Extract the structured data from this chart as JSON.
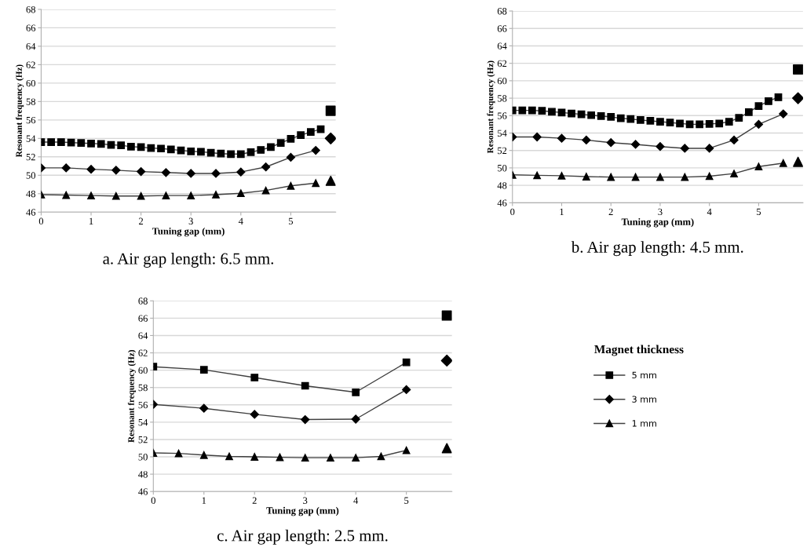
{
  "chart_data": [
    {
      "type": "line",
      "title": "a. Air gap length: 6.5 mm.",
      "xlabel": "Tuning gap (mm)",
      "ylabel": "Resonant frequency (Hz)",
      "xlim": [
        0,
        5.9
      ],
      "xticks": [
        0,
        1,
        2,
        3,
        4,
        5
      ],
      "ylim": [
        46,
        68
      ],
      "yticks": [
        46,
        48,
        50,
        52,
        54,
        56,
        58,
        60,
        62,
        64,
        66,
        68
      ],
      "grid": "y",
      "legend": false,
      "series": [
        {
          "color": "#000000",
          "marker": "square",
          "x": [
            0,
            0.2,
            0.4,
            0.6,
            0.8,
            1.0,
            1.2,
            1.4,
            1.6,
            1.8,
            2.0,
            2.2,
            2.4,
            2.6,
            2.8,
            3.0,
            3.2,
            3.4,
            3.6,
            3.8,
            4.0,
            4.2,
            4.4,
            4.6,
            4.8,
            5.0,
            5.2,
            5.4,
            5.6
          ],
          "values": [
            53.6,
            53.6,
            53.6,
            53.55,
            53.5,
            53.45,
            53.4,
            53.3,
            53.25,
            53.1,
            53.05,
            52.95,
            52.9,
            52.8,
            52.7,
            52.6,
            52.55,
            52.45,
            52.35,
            52.3,
            52.3,
            52.5,
            52.75,
            53.05,
            53.5,
            53.95,
            54.35,
            54.7,
            55.0
          ]
        },
        {
          "color": "#000000",
          "marker": "diamond",
          "x": [
            0,
            0.5,
            1,
            1.5,
            2,
            2.5,
            3,
            3.5,
            4,
            4.5,
            5,
            5.5
          ],
          "values": [
            50.8,
            50.8,
            50.65,
            50.55,
            50.4,
            50.3,
            50.2,
            50.2,
            50.35,
            50.9,
            51.95,
            52.7
          ]
        },
        {
          "color": "#000000",
          "marker": "triangle",
          "x": [
            0,
            0.5,
            1,
            1.5,
            2,
            2.5,
            3,
            3.5,
            4,
            4.5,
            5,
            5.5
          ],
          "values": [
            47.9,
            47.85,
            47.8,
            47.75,
            47.75,
            47.8,
            47.8,
            47.9,
            48.05,
            48.35,
            48.85,
            49.15
          ]
        },
        {
          "type": "scatter",
          "color": "#000000",
          "marker": "square",
          "x": [
            5.8
          ],
          "values": [
            57.0
          ]
        },
        {
          "type": "scatter",
          "color": "#000000",
          "marker": "diamond",
          "x": [
            5.8
          ],
          "values": [
            54.0
          ]
        },
        {
          "type": "scatter",
          "color": "#000000",
          "marker": "triangle",
          "x": [
            5.8
          ],
          "values": [
            49.4
          ]
        }
      ]
    },
    {
      "type": "line",
      "title": "b. Air gap length: 4.5 mm.",
      "xlabel": "Tuning gap (mm)",
      "ylabel": "Resonant frequency (Hz)",
      "xlim": [
        0,
        5.9
      ],
      "xticks": [
        0,
        1,
        2,
        3,
        4,
        5
      ],
      "ylim": [
        46,
        68
      ],
      "yticks": [
        46,
        48,
        50,
        52,
        54,
        56,
        58,
        60,
        62,
        64,
        66,
        68
      ],
      "grid": "y",
      "legend": false,
      "series": [
        {
          "color": "#000000",
          "marker": "square",
          "x": [
            0,
            0.2,
            0.4,
            0.6,
            0.8,
            1.0,
            1.2,
            1.4,
            1.6,
            1.8,
            2.0,
            2.2,
            2.4,
            2.6,
            2.8,
            3.0,
            3.2,
            3.4,
            3.6,
            3.8,
            4.0,
            4.2,
            4.4,
            4.6,
            4.8,
            5.0,
            5.2,
            5.4
          ],
          "values": [
            56.6,
            56.6,
            56.6,
            56.55,
            56.45,
            56.35,
            56.25,
            56.15,
            56.05,
            55.95,
            55.85,
            55.7,
            55.6,
            55.5,
            55.4,
            55.3,
            55.2,
            55.1,
            55.0,
            55.0,
            55.05,
            55.1,
            55.3,
            55.75,
            56.4,
            57.1,
            57.65,
            58.1
          ]
        },
        {
          "color": "#000000",
          "marker": "diamond",
          "x": [
            0,
            0.5,
            1,
            1.5,
            2,
            2.5,
            3,
            3.5,
            4,
            4.5,
            5,
            5.5
          ],
          "values": [
            53.55,
            53.55,
            53.4,
            53.2,
            52.9,
            52.7,
            52.45,
            52.25,
            52.25,
            53.2,
            55.0,
            56.2
          ]
        },
        {
          "color": "#000000",
          "marker": "triangle",
          "x": [
            0,
            0.5,
            1,
            1.5,
            2,
            2.5,
            3,
            3.5,
            4,
            4.5,
            5,
            5.5
          ],
          "values": [
            49.2,
            49.15,
            49.1,
            49.0,
            48.95,
            48.95,
            48.95,
            48.95,
            49.05,
            49.35,
            50.15,
            50.55
          ]
        },
        {
          "type": "scatter",
          "color": "#000000",
          "marker": "square",
          "x": [
            5.8
          ],
          "values": [
            61.3
          ]
        },
        {
          "type": "scatter",
          "color": "#000000",
          "marker": "diamond",
          "x": [
            5.8
          ],
          "values": [
            58.0
          ]
        },
        {
          "type": "scatter",
          "color": "#000000",
          "marker": "triangle",
          "x": [
            5.8
          ],
          "values": [
            50.7
          ]
        }
      ]
    },
    {
      "type": "line",
      "title": "c. Air gap length: 2.5 mm.",
      "xlabel": "Tuning gap (mm)",
      "ylabel": "Resonant frequency (Hz)",
      "xlim": [
        0,
        5.9
      ],
      "xticks": [
        0,
        1,
        2,
        3,
        4,
        5
      ],
      "ylim": [
        46,
        68
      ],
      "yticks": [
        46,
        48,
        50,
        52,
        54,
        56,
        58,
        60,
        62,
        64,
        66,
        68
      ],
      "grid": "y",
      "legend": "right",
      "legend_title": "Magnet thickness",
      "series": [
        {
          "name": "5 mm",
          "color": "#000000",
          "marker": "square",
          "x": [
            0,
            1,
            2,
            3,
            4,
            5
          ],
          "values": [
            60.4,
            60.05,
            59.15,
            58.2,
            57.45,
            60.9
          ]
        },
        {
          "name": "3 mm",
          "color": "#000000",
          "marker": "diamond",
          "x": [
            0,
            1,
            2,
            3,
            4,
            5
          ],
          "values": [
            56.05,
            55.6,
            54.9,
            54.3,
            54.35,
            57.75
          ]
        },
        {
          "name": "1 mm",
          "color": "#000000",
          "marker": "triangle",
          "x": [
            0,
            0.5,
            1,
            1.5,
            2,
            2.5,
            3,
            3.5,
            4,
            4.5,
            5
          ],
          "values": [
            50.45,
            50.4,
            50.2,
            50.05,
            50.0,
            49.95,
            49.9,
            49.9,
            49.9,
            50.05,
            50.75
          ]
        },
        {
          "type": "scatter",
          "color": "#000000",
          "marker": "square",
          "x": [
            5.8
          ],
          "values": [
            66.3
          ]
        },
        {
          "type": "scatter",
          "color": "#000000",
          "marker": "diamond",
          "x": [
            5.8
          ],
          "values": [
            61.1
          ]
        },
        {
          "type": "scatter",
          "color": "#000000",
          "marker": "triangle",
          "x": [
            5.8
          ],
          "values": [
            51.0
          ]
        }
      ]
    }
  ]
}
